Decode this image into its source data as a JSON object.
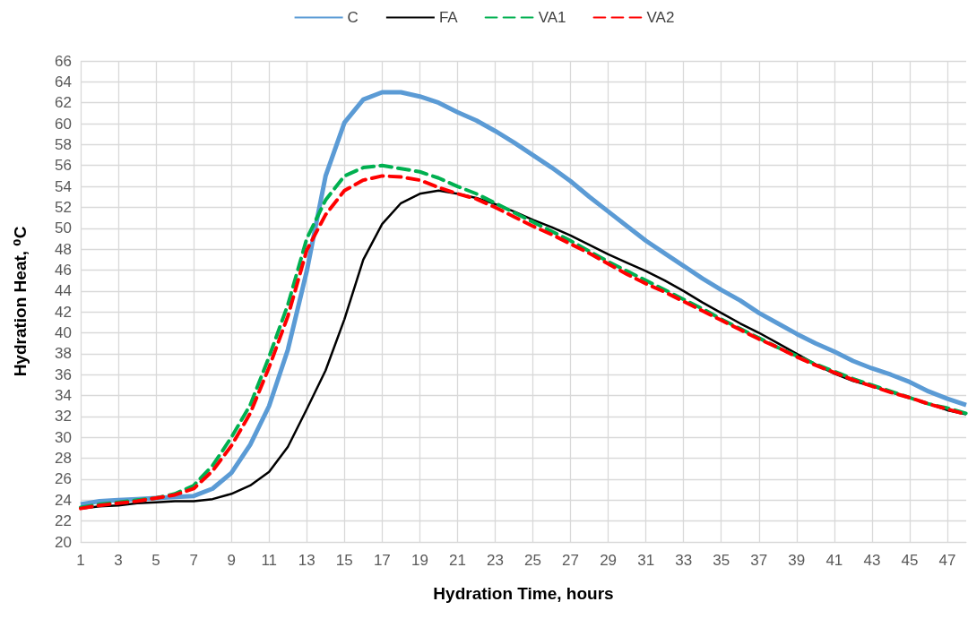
{
  "chart_data": {
    "type": "line",
    "xlabel": "Hydration Time, hours",
    "ylabel": "Hydration Heat, ⁰C",
    "x": [
      1,
      2,
      3,
      4,
      5,
      6,
      7,
      8,
      9,
      10,
      11,
      12,
      13,
      14,
      15,
      16,
      17,
      18,
      19,
      20,
      21,
      22,
      23,
      24,
      25,
      26,
      27,
      28,
      29,
      30,
      31,
      32,
      33,
      34,
      35,
      36,
      37,
      38,
      39,
      40,
      41,
      42,
      43,
      44,
      45,
      46,
      47,
      48
    ],
    "series": [
      {
        "name": "C",
        "color": "#5b9bd5",
        "line_style": "solid",
        "values": [
          23.6,
          23.9,
          24.0,
          24.1,
          24.2,
          24.3,
          24.4,
          25.1,
          26.6,
          29.3,
          33.0,
          38.4,
          45.9,
          55.0,
          60.1,
          62.3,
          63.0,
          63.0,
          62.6,
          62.0,
          61.1,
          60.3,
          59.3,
          58.2,
          57.0,
          55.8,
          54.5,
          53.0,
          51.6,
          50.2,
          48.8,
          47.6,
          46.4,
          45.2,
          44.1,
          43.1,
          41.9,
          40.9,
          39.9,
          39.0,
          38.2,
          37.3,
          36.6,
          36.0,
          35.3,
          34.4,
          33.7,
          33.1
        ]
      },
      {
        "name": "FA",
        "color": "#000000",
        "line_style": "solid",
        "values": [
          23.2,
          23.4,
          23.5,
          23.7,
          23.8,
          23.9,
          23.9,
          24.1,
          24.6,
          25.4,
          26.7,
          29.1,
          32.7,
          36.4,
          41.3,
          47.0,
          50.4,
          52.4,
          53.3,
          53.6,
          53.3,
          52.9,
          52.3,
          51.6,
          50.8,
          50.1,
          49.3,
          48.4,
          47.5,
          46.7,
          45.9,
          45.0,
          44.0,
          42.9,
          41.9,
          40.9,
          40.0,
          39.0,
          38.0,
          37.0,
          36.1,
          35.4,
          34.9,
          34.3,
          33.8,
          33.2,
          32.6,
          32.2
        ]
      },
      {
        "name": "VA1",
        "color": "#00b050",
        "line_style": "dashed",
        "values": [
          23.3,
          23.6,
          23.8,
          24.0,
          24.2,
          24.6,
          25.4,
          27.3,
          30.0,
          33.1,
          37.7,
          42.7,
          49.0,
          52.7,
          55.0,
          55.8,
          56.0,
          55.7,
          55.4,
          54.8,
          54.0,
          53.3,
          52.4,
          51.5,
          50.6,
          49.7,
          48.8,
          47.8,
          46.8,
          45.9,
          45.0,
          44.1,
          43.2,
          42.3,
          41.3,
          40.4,
          39.5,
          38.6,
          37.8,
          37.0,
          36.3,
          35.6,
          35.0,
          34.4,
          33.8,
          33.2,
          32.8,
          32.3
        ]
      },
      {
        "name": "VA2",
        "color": "#ff0000",
        "line_style": "dashed",
        "values": [
          23.2,
          23.5,
          23.7,
          23.9,
          24.2,
          24.5,
          25.1,
          26.8,
          29.2,
          32.3,
          36.7,
          41.6,
          47.9,
          51.3,
          53.6,
          54.6,
          55.0,
          54.9,
          54.6,
          53.9,
          53.3,
          52.8,
          52.0,
          51.1,
          50.2,
          49.4,
          48.5,
          47.6,
          46.6,
          45.6,
          44.7,
          43.9,
          43.0,
          42.1,
          41.2,
          40.3,
          39.4,
          38.6,
          37.7,
          36.9,
          36.2,
          35.5,
          34.9,
          34.3,
          33.8,
          33.2,
          32.7,
          32.2
        ]
      }
    ],
    "xlim": [
      1,
      48
    ],
    "xticks": [
      1,
      3,
      5,
      7,
      9,
      11,
      13,
      15,
      17,
      19,
      21,
      23,
      25,
      27,
      29,
      31,
      33,
      35,
      37,
      39,
      41,
      43,
      45,
      47
    ],
    "ylim": [
      20,
      66
    ],
    "yticks": [
      20,
      22,
      24,
      26,
      28,
      30,
      32,
      34,
      36,
      38,
      40,
      42,
      44,
      46,
      48,
      50,
      52,
      54,
      56,
      58,
      60,
      62,
      64,
      66
    ],
    "grid": true,
    "legend": "top",
    "marker": "none"
  }
}
